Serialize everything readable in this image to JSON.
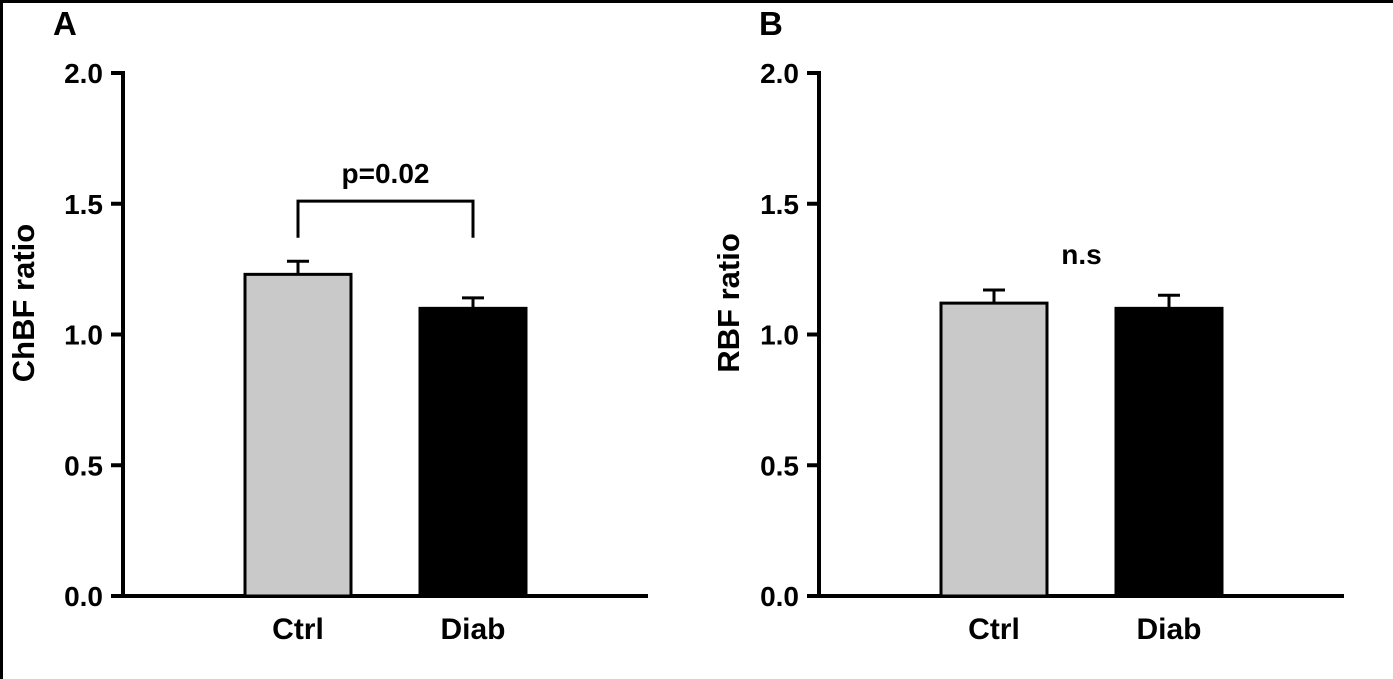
{
  "figure": {
    "background": "#ffffff",
    "border_color": "#000000"
  },
  "chart_data": [
    {
      "type": "bar",
      "panel_label": "A",
      "ylabel": "ChBF ratio",
      "categories": [
        "Ctrl",
        "Diab"
      ],
      "values": [
        1.23,
        1.1
      ],
      "errors": [
        0.05,
        0.04
      ],
      "bar_colors": [
        "#c9c9c9",
        "#000000"
      ],
      "bar_edge_color": "#000000",
      "ylim": [
        0.0,
        2.0
      ],
      "yticks": [
        "0.0",
        "0.5",
        "1.0",
        "1.5",
        "2.0"
      ],
      "grid": false,
      "legend": "none",
      "annotation": {
        "text": "p=0.02",
        "bracket": true,
        "y": 1.51,
        "drop": 0.14
      }
    },
    {
      "type": "bar",
      "panel_label": "B",
      "ylabel": "RBF ratio",
      "categories": [
        "Ctrl",
        "Diab"
      ],
      "values": [
        1.12,
        1.1
      ],
      "errors": [
        0.05,
        0.05
      ],
      "bar_colors": [
        "#c9c9c9",
        "#000000"
      ],
      "bar_edge_color": "#000000",
      "ylim": [
        0.0,
        2.0
      ],
      "yticks": [
        "0.0",
        "0.5",
        "1.0",
        "1.5",
        "2.0"
      ],
      "grid": false,
      "legend": "none",
      "annotation": {
        "text": "n.s",
        "bracket": false,
        "y": 1.27
      }
    }
  ]
}
